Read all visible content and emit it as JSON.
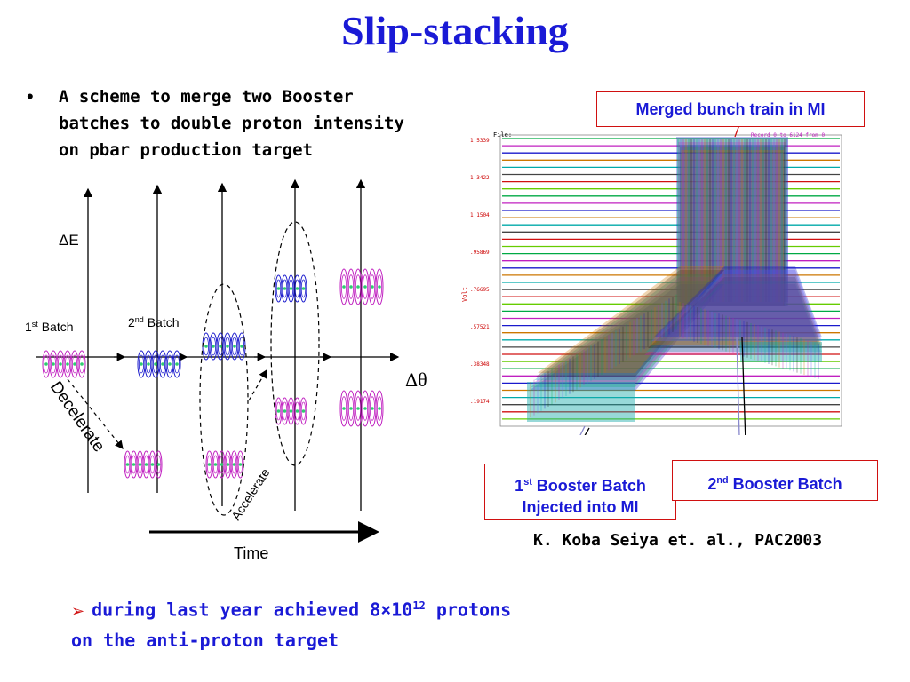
{
  "title": "Slip-stacking",
  "bullet": {
    "symbol": "•",
    "lines": [
      "A scheme to merge two Booster",
      "batches to double proton intensity",
      "on pbar production target"
    ]
  },
  "diagram": {
    "delta_e_label": "ΔE",
    "delta_theta_label": "Δθ",
    "first_batch": "1",
    "first_batch_sup": "st",
    "first_batch_suffix": " Batch",
    "second_batch": "2",
    "second_batch_sup": "nd",
    "second_batch_suffix": " Batch",
    "decelerate": "Decelerate",
    "accelerate": "Accelerate",
    "time": "Time"
  },
  "plot": {
    "file_label": "File:",
    "record_label": "Record 0 to 6124 from 0",
    "y_axis_label": "Volt",
    "y_ticks": [
      "1.5339",
      "1.3422",
      "1.1504",
      ".95869",
      ".76695",
      ".57521",
      ".38348",
      ".19174"
    ]
  },
  "callouts": {
    "merged": "Merged bunch train in MI",
    "first_num": "1",
    "first_sup": "st",
    "first_text": " Booster Batch",
    "first_line2": "Injected into MI",
    "second_num": "2",
    "second_sup": "nd",
    "second_text": " Booster Batch"
  },
  "citation": "K. Koba Seiya et. al., PAC2003",
  "result": {
    "arrow": "➢",
    "pre": "during last year achieved 8×10",
    "exp": "12",
    "post": " protons",
    "line2": "on the anti-proton target"
  },
  "colors": {
    "title": "#1a1ad6",
    "callout_border": "#d01010",
    "callout_text": "#1a1ad6",
    "bucket_blue": "#1a1acc",
    "bucket_magenta": "#c020c0"
  }
}
